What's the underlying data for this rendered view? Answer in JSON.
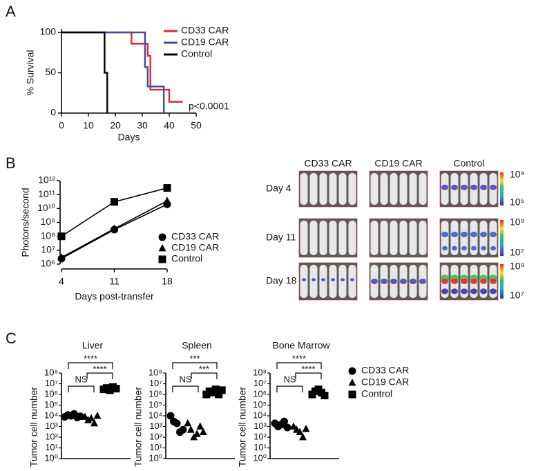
{
  "panel_labels": [
    "A",
    "B",
    "C"
  ],
  "chart_data": [
    {
      "type": "step",
      "ylabel": "% Survival",
      "xlabel": "Days",
      "annotation": "p<0.0001",
      "xlim": [
        0,
        50
      ],
      "xticks": [
        0,
        10,
        20,
        30,
        40,
        50
      ],
      "ylim": [
        0,
        100
      ],
      "yticks": [
        0,
        50,
        100
      ],
      "series": [
        {
          "name": "CD33 CAR",
          "color": "#e8232a",
          "x": [
            0,
            26,
            32,
            33,
            40,
            45
          ],
          "values": [
            100,
            86,
            71,
            29,
            14,
            14
          ]
        },
        {
          "name": "CD19 CAR",
          "color": "#3a4ea6",
          "x": [
            0,
            31,
            32,
            38
          ],
          "values": [
            100,
            57,
            33,
            0
          ]
        },
        {
          "name": "Control",
          "color": "#000000",
          "x": [
            0,
            16,
            17
          ],
          "values": [
            100,
            50,
            0
          ]
        }
      ]
    },
    {
      "type": "line",
      "ylabel": "Photons/second",
      "xlabel": "Days post-transfer",
      "log_y": true,
      "x": [
        4,
        11,
        18
      ],
      "xlim": [
        4,
        18
      ],
      "xticks": [
        4,
        11,
        18
      ],
      "ylim": [
        1000000,
        1000000000000
      ],
      "yticks": [
        {
          "value": 1000000,
          "label": "10⁶"
        },
        {
          "value": 10000000,
          "label": "10⁷"
        },
        {
          "value": 100000000,
          "label": "10⁸"
        },
        {
          "value": 1000000000,
          "label": "10⁹"
        },
        {
          "value": 10000000000,
          "label": "10¹⁰"
        },
        {
          "value": 100000000000,
          "label": "10¹¹"
        },
        {
          "value": 1000000000000,
          "label": "10¹²"
        }
      ],
      "series": [
        {
          "name": "CD33 CAR",
          "color": "#000000",
          "marker": "circle",
          "values": [
            2500000,
            300000000,
            20000000000
          ]
        },
        {
          "name": "CD19 CAR",
          "color": "#000000",
          "marker": "triangle",
          "values": [
            3000000,
            350000000,
            35000000000
          ]
        },
        {
          "name": "Control",
          "color": "#000000",
          "marker": "square",
          "values": [
            100000000,
            30000000000,
            300000000000
          ]
        }
      ]
    },
    {
      "type": "dot",
      "title": "Liver",
      "ylabel": "Tumor cell number",
      "log_y": true,
      "ylim": [
        1,
        100000000
      ],
      "yticks": [
        {
          "value": 1,
          "label": "10⁰"
        },
        {
          "value": 10,
          "label": "10¹"
        },
        {
          "value": 100,
          "label": "10²"
        },
        {
          "value": 1000,
          "label": "10³"
        },
        {
          "value": 10000,
          "label": "10⁴"
        },
        {
          "value": 100000,
          "label": "10⁵"
        },
        {
          "value": 1000000,
          "label": "10⁶"
        },
        {
          "value": 10000000,
          "label": "10⁷"
        },
        {
          "value": 100000000,
          "label": "10⁸"
        }
      ],
      "series": [
        {
          "name": "CD33 CAR",
          "color": "#000000",
          "marker": "circle",
          "values": [
            8000,
            12000,
            10000,
            15000,
            7000,
            9000
          ]
        },
        {
          "name": "CD19 CAR",
          "color": "#000000",
          "marker": "triangle",
          "values": [
            8000,
            4000,
            6000,
            2000,
            10000
          ]
        },
        {
          "name": "Control",
          "color": "#000000",
          "marker": "square",
          "values": [
            3000000,
            4000000,
            2500000,
            5000000,
            3500000
          ]
        }
      ],
      "comparisons": [
        {
          "pair": [
            "CD33 CAR",
            "CD19 CAR"
          ],
          "label": "NS"
        },
        {
          "pair": [
            "CD19 CAR",
            "Control"
          ],
          "label": "****"
        },
        {
          "pair": [
            "CD33 CAR",
            "Control"
          ],
          "label": "****"
        }
      ]
    },
    {
      "type": "dot",
      "title": "Spleen",
      "ylabel": "Tumor cell number",
      "log_y": true,
      "ylim": [
        1,
        100000000
      ],
      "yticks": [
        {
          "value": 1,
          "label": "10⁰"
        },
        {
          "value": 10,
          "label": "10¹"
        },
        {
          "value": 100,
          "label": "10²"
        },
        {
          "value": 1000,
          "label": "10³"
        },
        {
          "value": 10000,
          "label": "10⁴"
        },
        {
          "value": 100000,
          "label": "10⁵"
        },
        {
          "value": 1000000,
          "label": "10⁶"
        },
        {
          "value": 10000000,
          "label": "10⁷"
        },
        {
          "value": 100000000,
          "label": "10⁸"
        }
      ],
      "series": [
        {
          "name": "CD33 CAR",
          "color": "#000000",
          "marker": "circle",
          "values": [
            10000,
            3000,
            2000,
            300,
            500
          ]
        },
        {
          "name": "CD19 CAR",
          "color": "#000000",
          "marker": "triangle",
          "values": [
            2000,
            500,
            100,
            200,
            1000,
            300
          ]
        },
        {
          "name": "Control",
          "color": "#000000",
          "marker": "square",
          "values": [
            1000000,
            2000000,
            1500000,
            3000000,
            1000000,
            2500000
          ]
        }
      ],
      "comparisons": [
        {
          "pair": [
            "CD33 CAR",
            "CD19 CAR"
          ],
          "label": "NS"
        },
        {
          "pair": [
            "CD19 CAR",
            "Control"
          ],
          "label": "***"
        },
        {
          "pair": [
            "CD33 CAR",
            "Control"
          ],
          "label": "***"
        }
      ]
    },
    {
      "type": "dot",
      "title": "Bone Marrow",
      "ylabel": "Tumor cell number",
      "log_y": true,
      "ylim": [
        1,
        100000000
      ],
      "yticks": [
        {
          "value": 1,
          "label": "10⁰"
        },
        {
          "value": 10,
          "label": "10¹"
        },
        {
          "value": 100,
          "label": "10²"
        },
        {
          "value": 1000,
          "label": "10³"
        },
        {
          "value": 10000,
          "label": "10⁴"
        },
        {
          "value": 100000,
          "label": "10⁵"
        },
        {
          "value": 1000000,
          "label": "10⁶"
        },
        {
          "value": 10000000,
          "label": "10⁷"
        },
        {
          "value": 100000000,
          "label": "10⁸"
        }
      ],
      "series": [
        {
          "name": "CD33 CAR",
          "color": "#000000",
          "marker": "circle",
          "values": [
            2000,
            1000,
            1500,
            3000,
            800
          ]
        },
        {
          "name": "CD19 CAR",
          "color": "#000000",
          "marker": "triangle",
          "values": [
            1000,
            500,
            300,
            100,
            600
          ]
        },
        {
          "name": "Control",
          "color": "#000000",
          "marker": "square",
          "values": [
            1000000,
            2000000,
            3000000,
            1500000,
            800000
          ]
        }
      ],
      "comparisons": [
        {
          "pair": [
            "CD33 CAR",
            "CD19 CAR"
          ],
          "label": "NS"
        },
        {
          "pair": [
            "CD19 CAR",
            "Control"
          ],
          "label": "****"
        },
        {
          "pair": [
            "CD33 CAR",
            "Control"
          ],
          "label": "****"
        }
      ]
    }
  ],
  "imaging": {
    "columns": [
      "CD33 CAR",
      "CD19 CAR",
      "Control"
    ],
    "rows": [
      "Day 4",
      "Day 11",
      "Day 18"
    ],
    "scale_labels": [
      [
        "10⁹",
        "10⁵"
      ],
      [
        "10⁹",
        "10⁷"
      ],
      [
        "10⁹",
        "10⁷"
      ]
    ]
  }
}
